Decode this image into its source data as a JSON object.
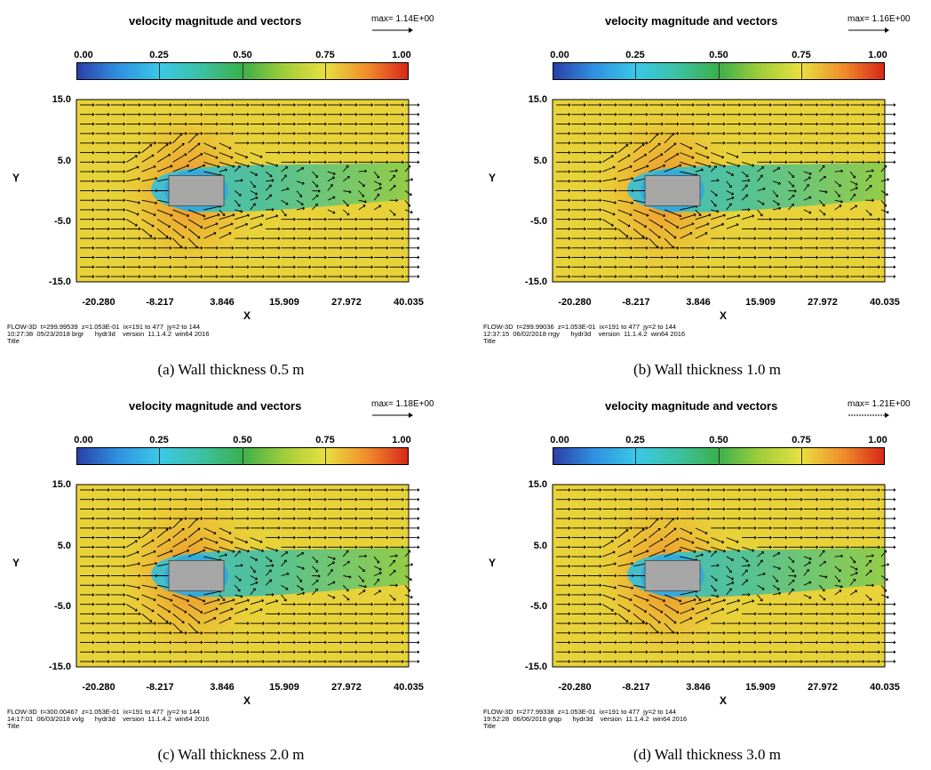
{
  "chart_data": [
    {
      "type": "heatmap",
      "title": "velocity magnitude and vectors",
      "max_label": "max= 1.14E+00",
      "colorbar_ticks": [
        "0.00",
        "0.25",
        "0.50",
        "0.75",
        "1.00"
      ],
      "colorbar_range": [
        0,
        1
      ],
      "xlabel": "X",
      "ylabel": "Y",
      "x_ticks": [
        "-20.280",
        "-8.217",
        "3.846",
        "15.909",
        "27.972",
        "40.035"
      ],
      "y_ticks": [
        "15.0",
        "5.0",
        "-5.0",
        "-15.0"
      ],
      "xlim": [
        -20.28,
        40.035
      ],
      "ylim": [
        -15,
        15
      ],
      "obstacle": {
        "x": [
          -3.5,
          6.5
        ],
        "y": [
          -2.5,
          2.5
        ]
      },
      "footer_line1": "FLOW-3D  t=299.99539  z=1.053E-01  ix=191 to 477  jy=2 to 144",
      "footer_line2": "10:27:38  05/23/2018 brgr      hydr3d    version  11.1.4.2  win64 2016",
      "footer_line3": "Title",
      "caption": "(a) Wall thickness 0.5 m"
    },
    {
      "type": "heatmap",
      "title": "velocity magnitude and vectors",
      "max_label": "max= 1.16E+00",
      "colorbar_ticks": [
        "0.00",
        "0.25",
        "0.50",
        "0.75",
        "1.00"
      ],
      "colorbar_range": [
        0,
        1
      ],
      "xlabel": "X",
      "ylabel": "Y",
      "x_ticks": [
        "-20.280",
        "-8.217",
        "3.846",
        "15.909",
        "27.972",
        "40.035"
      ],
      "y_ticks": [
        "15.0",
        "5.0",
        "-5.0",
        "-15.0"
      ],
      "xlim": [
        -20.28,
        40.035
      ],
      "ylim": [
        -15,
        15
      ],
      "obstacle": {
        "x": [
          -3.5,
          6.5
        ],
        "y": [
          -2.5,
          2.5
        ]
      },
      "footer_line1": "FLOW-3D  t=299.99036  z=1.053E-01  ix=191 to 477  jy=2 to 144",
      "footer_line2": "12:37:15  06/02/2018 rrgy      hydr3d    version  11.1.4.2  win64 2016",
      "footer_line3": "Title",
      "caption": "(b) Wall thickness 1.0 m"
    },
    {
      "type": "heatmap",
      "title": "velocity magnitude and vectors",
      "max_label": "max= 1.18E+00",
      "colorbar_ticks": [
        "0.00",
        "0.25",
        "0.50",
        "0.75",
        "1.00"
      ],
      "colorbar_range": [
        0,
        1
      ],
      "xlabel": "X",
      "ylabel": "Y",
      "x_ticks": [
        "-20.280",
        "-8.217",
        "3.846",
        "15.909",
        "27.972",
        "40.035"
      ],
      "y_ticks": [
        "15.0",
        "5.0",
        "-5.0",
        "-15.0"
      ],
      "xlim": [
        -20.28,
        40.035
      ],
      "ylim": [
        -15,
        15
      ],
      "obstacle": {
        "x": [
          -3.5,
          6.5
        ],
        "y": [
          -2.5,
          2.5
        ]
      },
      "footer_line1": "FLOW-3D  t=300.00467  z=1.053E-01  ix=191 to 477  jy=2 to 144",
      "footer_line2": "14:17:01  06/03/2018 vvlg      hydr3d    version  11.1.4.2  win64 2016",
      "footer_line3": "Title",
      "caption": "(c) Wall thickness 2.0 m"
    },
    {
      "type": "heatmap",
      "title": "velocity magnitude and vectors",
      "max_label": "max= 1.21E+00",
      "colorbar_ticks": [
        "0.00",
        "0.25",
        "0.50",
        "0.75",
        "1.00"
      ],
      "colorbar_range": [
        0,
        1
      ],
      "xlabel": "X",
      "ylabel": "Y",
      "x_ticks": [
        "-20.280",
        "-8.217",
        "3.846",
        "15.909",
        "27.972",
        "40.035"
      ],
      "y_ticks": [
        "15.0",
        "5.0",
        "-5.0",
        "-15.0"
      ],
      "xlim": [
        -20.28,
        40.035
      ],
      "ylim": [
        -15,
        15
      ],
      "obstacle": {
        "x": [
          -3.5,
          6.5
        ],
        "y": [
          -2.5,
          2.5
        ]
      },
      "footer_line1": "FLOW-3D  t=277.99338  z=1.053E-01  ix=191 to 477  jy=2 to 144",
      "footer_line2": "19:52:28  06/06/2018 grqp      hydr3d    version  11.1.4.2  win64 2016",
      "footer_line3": "Title",
      "caption": "(d) Wall thickness 3.0 m"
    }
  ]
}
